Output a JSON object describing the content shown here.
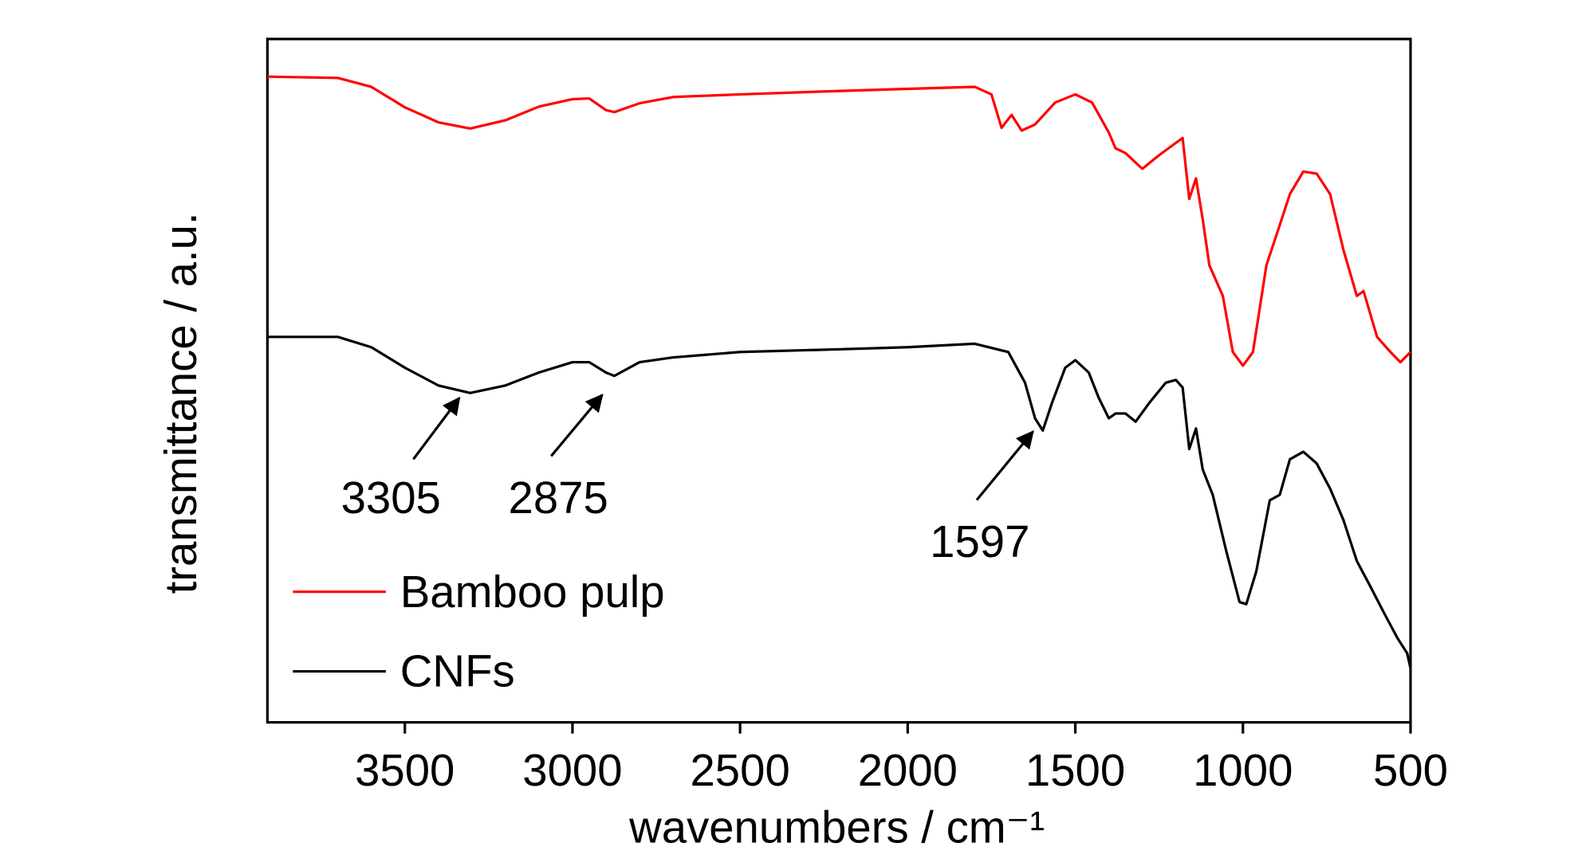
{
  "chart_data": {
    "type": "line",
    "x_label": "wavenumbers / cm⁻¹",
    "y_label": "transmittance / a.u.",
    "xlim": [
      3910,
      500
    ],
    "ylim": [
      0,
      100
    ],
    "xticks": [
      3500,
      3000,
      2500,
      2000,
      1500,
      1000,
      500
    ],
    "legend": "lower left",
    "series": [
      {
        "name": "Bamboo pulp",
        "color": "#ff0000",
        "x": [
          3910,
          3700,
          3600,
          3500,
          3400,
          3305,
          3200,
          3100,
          3000,
          2950,
          2900,
          2875,
          2800,
          2700,
          2500,
          2200,
          2000,
          1800,
          1750,
          1720,
          1690,
          1660,
          1620,
          1560,
          1500,
          1450,
          1400,
          1380,
          1350,
          1300,
          1250,
          1200,
          1180,
          1160,
          1140,
          1120,
          1100,
          1060,
          1030,
          1000,
          970,
          930,
          900,
          860,
          820,
          780,
          740,
          700,
          660,
          640,
          600,
          560,
          530,
          500
        ],
        "values": [
          94.5,
          94.3,
          93.0,
          90.0,
          87.8,
          86.9,
          88.1,
          90.1,
          91.2,
          91.3,
          89.6,
          89.3,
          90.6,
          91.5,
          91.9,
          92.4,
          92.7,
          93.0,
          91.9,
          87.0,
          88.9,
          86.6,
          87.5,
          90.7,
          91.9,
          90.7,
          86.3,
          84.0,
          83.3,
          81.0,
          83.0,
          84.8,
          85.5,
          76.6,
          79.6,
          73.6,
          66.9,
          62.4,
          54.2,
          52.2,
          54.2,
          66.9,
          71.3,
          77.3,
          80.6,
          80.3,
          77.3,
          69.1,
          62.4,
          63.1,
          56.4,
          54.2,
          52.7,
          54.2
        ]
      },
      {
        "name": "CNFs",
        "color": "#000000",
        "x": [
          3910,
          3700,
          3600,
          3500,
          3400,
          3305,
          3200,
          3100,
          3000,
          2950,
          2900,
          2875,
          2800,
          2700,
          2500,
          2200,
          2000,
          1800,
          1700,
          1650,
          1620,
          1597,
          1570,
          1530,
          1500,
          1460,
          1430,
          1400,
          1380,
          1350,
          1320,
          1280,
          1230,
          1200,
          1180,
          1160,
          1140,
          1120,
          1090,
          1050,
          1010,
          990,
          960,
          920,
          890,
          860,
          820,
          780,
          740,
          700,
          660,
          620,
          580,
          540,
          510,
          500
        ],
        "values": [
          56.4,
          56.4,
          54.9,
          51.9,
          49.3,
          48.2,
          49.3,
          51.2,
          52.7,
          52.7,
          51.2,
          50.7,
          52.7,
          53.4,
          54.2,
          54.6,
          54.9,
          55.4,
          54.2,
          49.7,
          44.5,
          42.7,
          46.7,
          51.9,
          53.0,
          51.2,
          47.5,
          44.5,
          45.2,
          45.2,
          44.0,
          46.7,
          49.7,
          50.1,
          49.0,
          40.0,
          43.0,
          37.0,
          33.3,
          25.1,
          17.6,
          17.3,
          22.1,
          32.5,
          33.3,
          38.5,
          39.6,
          37.9,
          34.2,
          29.6,
          23.6,
          19.9,
          16.1,
          12.4,
          10.1,
          7.9
        ]
      }
    ],
    "annotations": [
      {
        "text": "3305"
      },
      {
        "text": "2875"
      },
      {
        "text": "1597"
      }
    ]
  }
}
